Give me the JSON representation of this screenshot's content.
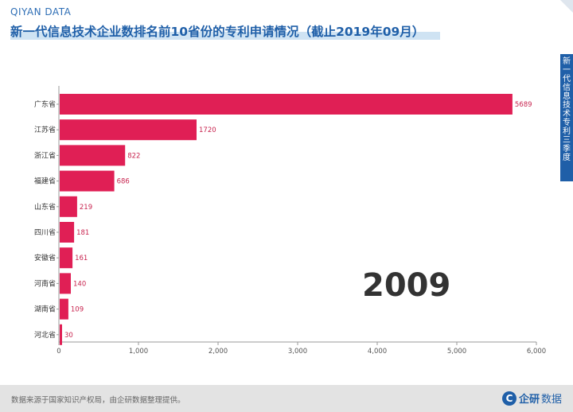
{
  "header": {
    "brand": "QIYAN DATA",
    "title": "新一代信息技术企业数排名前10省份的专利申请情况（截止2019年09月）"
  },
  "side_tab": {
    "text": "新一代信息技术 专利 三季度"
  },
  "year_label": "2009",
  "footer": {
    "note": "数据来源于国家知识产权局，由企研数据整理提供。",
    "logo_icon": "企研-logo-icon",
    "logo_text_a": "企研",
    "logo_text_b": "数据"
  },
  "colors": {
    "bar": "#e01f55",
    "value_label": "#c8244f",
    "brand_blue": "#1f5fa8"
  },
  "chart_data": {
    "type": "bar",
    "orientation": "horizontal",
    "categories": [
      "广东省",
      "江苏省",
      "浙江省",
      "福建省",
      "山东省",
      "四川省",
      "安徽省",
      "河南省",
      "湖南省",
      "河北省"
    ],
    "values": [
      5689,
      1720,
      822,
      686,
      219,
      181,
      161,
      140,
      109,
      30
    ],
    "xlim": [
      0,
      6000
    ],
    "x_ticks": [
      0,
      1000,
      2000,
      3000,
      4000,
      5000,
      6000
    ],
    "x_tick_labels": [
      "0",
      "1,000",
      "2,000",
      "3,000",
      "4,000",
      "5,000",
      "6,000"
    ],
    "grid": false,
    "title": "",
    "xlabel": "",
    "ylabel": ""
  }
}
